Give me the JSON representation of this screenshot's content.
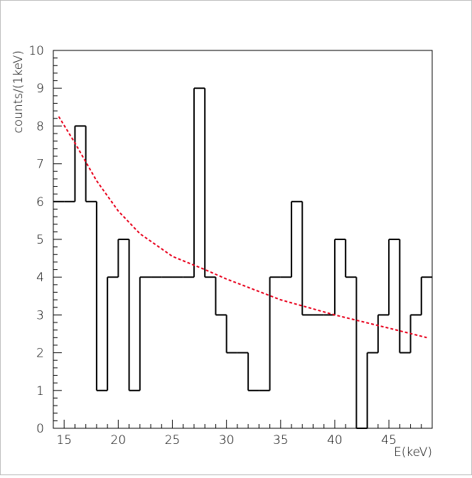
{
  "chart_data": {
    "type": "histogram",
    "title": "",
    "xlabel": "E(keV)",
    "ylabel": "counts/(1keV)",
    "xlim": [
      14,
      49
    ],
    "ylim": [
      0,
      10
    ],
    "x_ticks": [
      15,
      20,
      25,
      30,
      35,
      40,
      45
    ],
    "y_ticks": [
      0,
      1,
      2,
      3,
      4,
      5,
      6,
      7,
      8,
      9,
      10
    ],
    "grid": false,
    "legend": "none",
    "histogram": {
      "bin_width": 1,
      "bin_edges_start": 14,
      "counts": [
        6,
        6,
        8,
        6,
        1,
        4,
        5,
        1,
        4,
        4,
        4,
        4,
        4,
        9,
        4,
        3,
        2,
        2,
        1,
        1,
        4,
        4,
        6,
        3,
        3,
        3,
        5,
        4,
        0,
        2,
        3,
        5,
        2,
        3,
        4
      ],
      "color": "#000000"
    },
    "fit": {
      "type": "line",
      "style": "dashed",
      "color": "#e8001c",
      "x": [
        14.5,
        16,
        18,
        20,
        22,
        25,
        28,
        30,
        35,
        40,
        45,
        48.5
      ],
      "y": [
        8.25,
        7.55,
        6.55,
        5.75,
        5.15,
        4.55,
        4.2,
        3.95,
        3.4,
        3.0,
        2.65,
        2.4
      ]
    }
  }
}
